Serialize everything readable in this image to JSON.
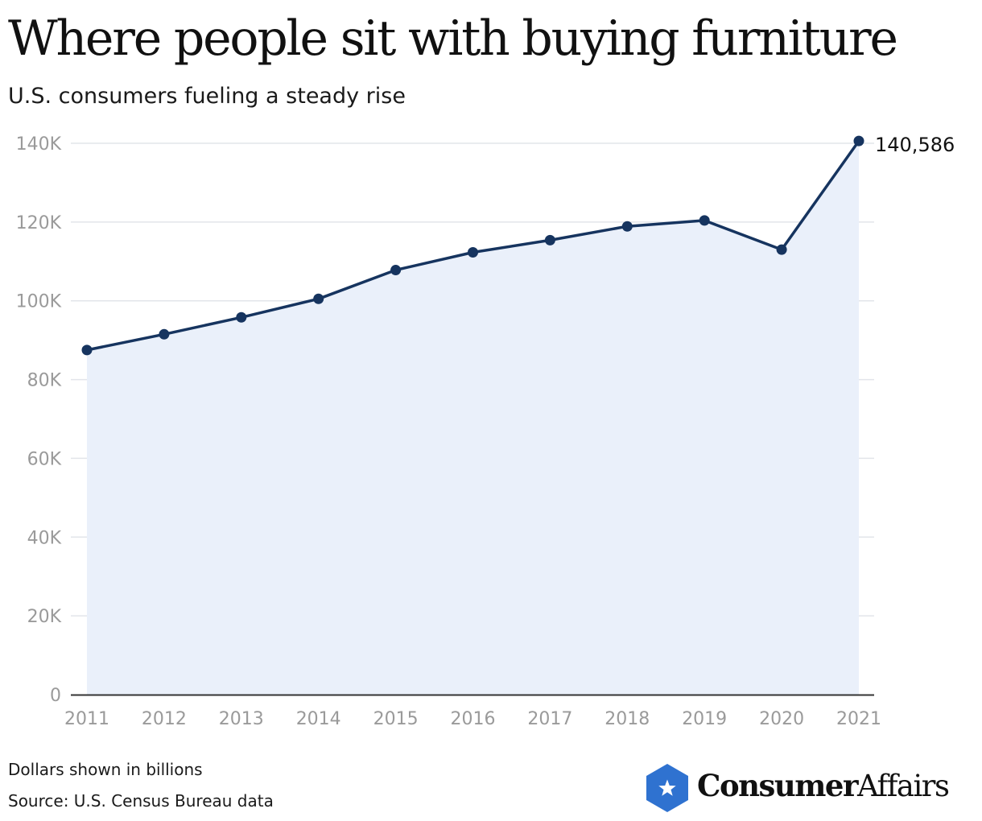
{
  "header": {
    "title": "Where people sit with buying furniture",
    "subtitle": "U.S. consumers fueling a steady rise"
  },
  "footer": {
    "note": "Dollars shown in billions",
    "source": "Source: U.S. Census Bureau data"
  },
  "logo": {
    "word_bold": "Consumer",
    "word_light": "Affairs",
    "badge_icon": "star-icon",
    "badge_color": "#2f72d0"
  },
  "colors": {
    "line": "#16345f",
    "area": "#eaf0fa",
    "grid": "#e2e5ea",
    "axis": "#333333"
  },
  "chart_data": {
    "type": "area",
    "x": [
      "2011",
      "2012",
      "2013",
      "2014",
      "2015",
      "2016",
      "2017",
      "2018",
      "2019",
      "2020",
      "2021"
    ],
    "series": [
      {
        "values": [
          87500,
          91500,
          95800,
          100500,
          107800,
          112300,
          115400,
          118900,
          120400,
          113000,
          140586
        ]
      }
    ],
    "ylim": [
      0,
      140000
    ],
    "yticks": [
      0,
      20000,
      40000,
      60000,
      80000,
      100000,
      120000,
      140000
    ],
    "ytick_labels": [
      "0",
      "20K",
      "40K",
      "60K",
      "80K",
      "100K",
      "120K",
      "140K"
    ],
    "annotation": {
      "index": 10,
      "text": "140,586"
    },
    "grid": true
  }
}
